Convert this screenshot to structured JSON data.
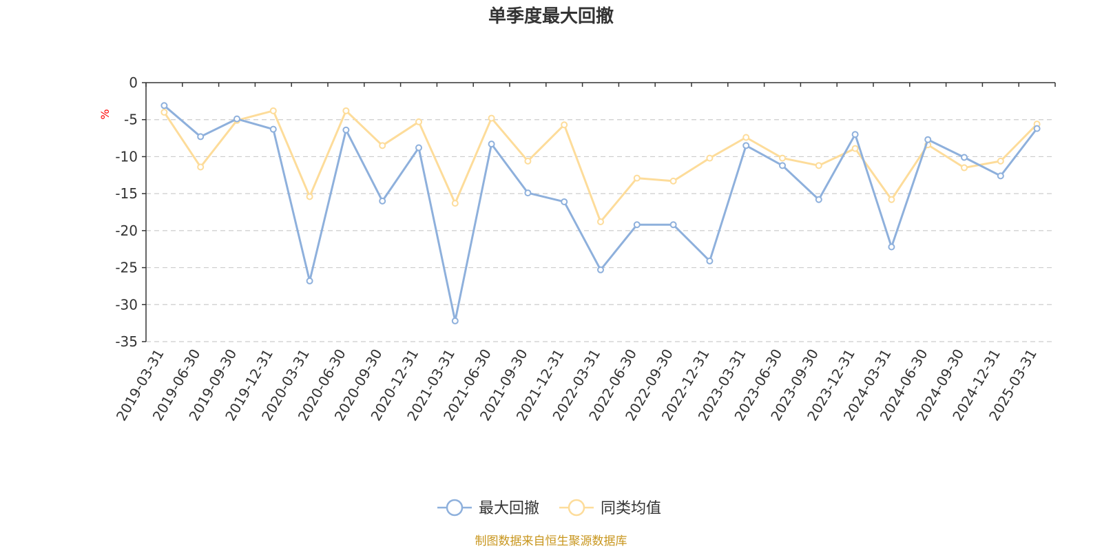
{
  "chart_data": {
    "type": "line",
    "title": "单季度最大回撤",
    "ylabel": "%",
    "xlabel": "",
    "categories": [
      "2019-03-31",
      "2019-06-30",
      "2019-09-30",
      "2019-12-31",
      "2020-03-31",
      "2020-06-30",
      "2020-09-30",
      "2020-12-31",
      "2021-03-31",
      "2021-06-30",
      "2021-09-30",
      "2021-12-31",
      "2022-03-31",
      "2022-06-30",
      "2022-09-30",
      "2022-12-31",
      "2023-03-31",
      "2023-06-30",
      "2023-09-30",
      "2023-12-31",
      "2024-03-31",
      "2024-06-30",
      "2024-09-30",
      "2024-12-31",
      "2025-03-31"
    ],
    "ylim": [
      -35,
      0
    ],
    "yticks": [
      0,
      -5,
      -10,
      -15,
      -20,
      -25,
      -30,
      -35
    ],
    "grid": true,
    "legend_position": "bottom",
    "series": [
      {
        "name": "最大回撤",
        "color": "#8eb0dc",
        "values": [
          -3.1,
          -7.3,
          -4.9,
          -6.3,
          -26.8,
          -6.4,
          -16.0,
          -8.8,
          -32.2,
          -8.3,
          -14.9,
          -16.1,
          -25.3,
          -19.2,
          -19.2,
          -24.1,
          -8.5,
          -11.2,
          -15.8,
          -7.0,
          -22.2,
          -7.7,
          -10.1,
          -12.6,
          -6.2
        ]
      },
      {
        "name": "同类均值",
        "color": "#fddc9a",
        "values": [
          -4.0,
          -11.4,
          -5.1,
          -3.8,
          -15.4,
          -3.8,
          -8.5,
          -5.3,
          -16.3,
          -4.8,
          -10.6,
          -5.7,
          -18.8,
          -12.9,
          -13.3,
          -10.2,
          -7.4,
          -10.2,
          -11.2,
          -8.9,
          -15.8,
          -8.4,
          -11.5,
          -10.6,
          -5.6
        ]
      }
    ],
    "source_note": "制图数据来自恒生聚源数据库"
  }
}
